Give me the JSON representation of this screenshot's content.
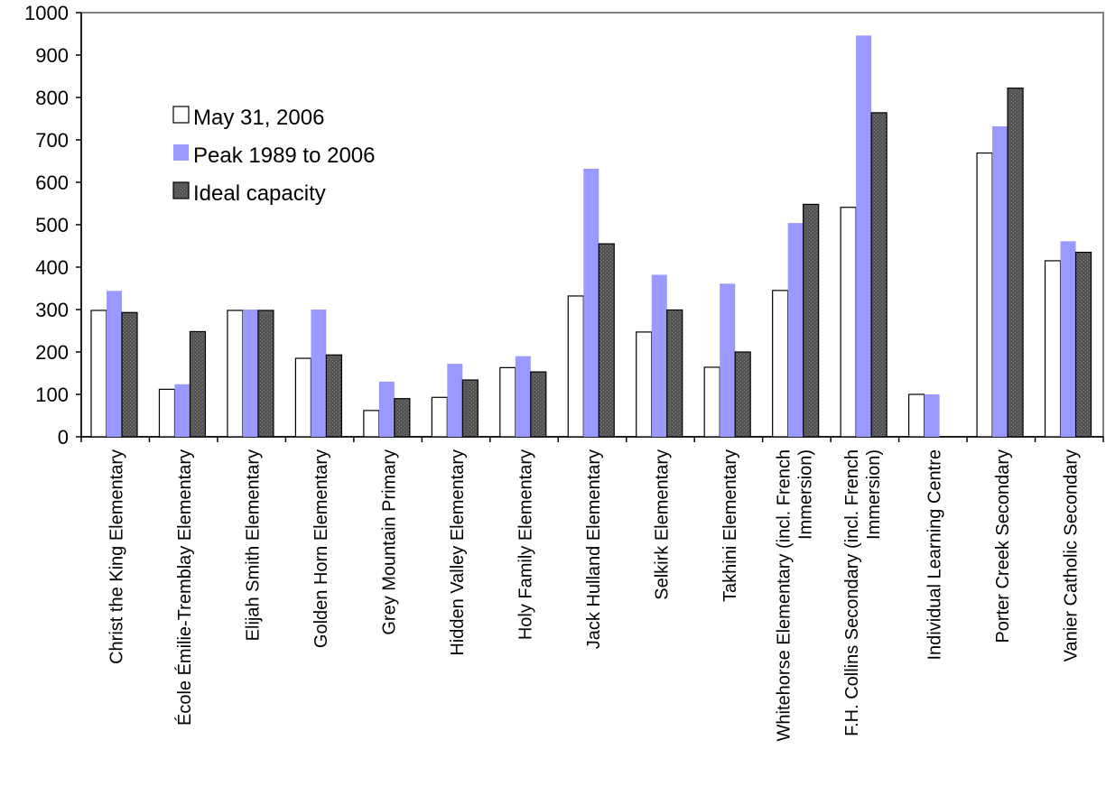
{
  "chart_data": {
    "type": "bar",
    "title": "",
    "xlabel": "",
    "ylabel": "",
    "ylim": [
      0,
      1000
    ],
    "yticks": [
      0,
      100,
      200,
      300,
      400,
      500,
      600,
      700,
      800,
      900,
      1000
    ],
    "grid": false,
    "legend_position": "upper-left",
    "categories": [
      [
        "Christ the King Elementary"
      ],
      [
        "École Émilie-Tremblay Elementary"
      ],
      [
        "Elijah Smith Elementary"
      ],
      [
        "Golden Horn Elementary"
      ],
      [
        "Grey Mountain Primary"
      ],
      [
        "Hidden Valley Elementary"
      ],
      [
        "Holy Family Elementary"
      ],
      [
        "Jack Hulland Elementary"
      ],
      [
        "Selkirk Elementary"
      ],
      [
        "Takhini Elementary"
      ],
      [
        "Whitehorse Elementary (incl. French",
        "Immersion)"
      ],
      [
        "F.H. Collins Secondary (incl. French",
        "Immersion)"
      ],
      [
        "Individual Learning Centre"
      ],
      [
        "Porter Creek Secondary"
      ],
      [
        "Vanier Catholic Secondary"
      ]
    ],
    "series": [
      {
        "name": "May 31, 2006",
        "color": "#ffffff",
        "values": [
          298,
          112,
          298,
          185,
          62,
          93,
          163,
          332,
          247,
          164,
          345,
          541,
          100,
          669,
          415
        ]
      },
      {
        "name": "Peak 1989 to 2006",
        "color": "#9999ff",
        "values": [
          344,
          124,
          300,
          300,
          130,
          172,
          190,
          632,
          382,
          361,
          504,
          946,
          100,
          732,
          461
        ]
      },
      {
        "name": "Ideal capacity",
        "color": "#555555",
        "values": [
          293,
          248,
          298,
          193,
          90,
          134,
          153,
          455,
          299,
          200,
          548,
          764,
          null,
          822,
          435
        ]
      }
    ]
  }
}
